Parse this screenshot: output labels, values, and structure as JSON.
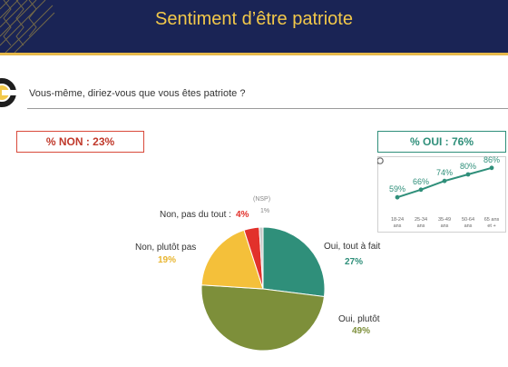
{
  "header": {
    "title": "Sentiment d’être patriote"
  },
  "question": "Vous-même, diriez-vous que vous êtes patriote ?",
  "summary": {
    "non": "% NON : 23%",
    "oui": "% OUI : 76%"
  },
  "colors": {
    "header_bg": "#1a2455",
    "title": "#f2c84a",
    "oui_tout_a_fait": "#2f8f7a",
    "oui_plutot": "#7d8f3a",
    "non_plutot_pas": "#f4c03a",
    "non_pas_du_tout": "#e2312b",
    "nsp": "#c9c9c9"
  },
  "chart_data": [
    {
      "type": "pie",
      "slices": [
        {
          "label": "Oui, tout à fait",
          "value": 27,
          "value_label": "27%"
        },
        {
          "label": "Oui, plutôt",
          "value": 49,
          "value_label": "49%"
        },
        {
          "label": "Non, plutôt pas",
          "value": 19,
          "value_label": "19%"
        },
        {
          "label": "Non, pas du tout :",
          "value": 4,
          "value_label": "4%"
        },
        {
          "label": "(NSP)",
          "value": 1,
          "value_label": "1%"
        }
      ]
    },
    {
      "type": "line",
      "categories": [
        "18-24 ans",
        "25-34 ans",
        "35-49 ans",
        "50-64 ans",
        "65 ans et +"
      ],
      "tick_labels": [
        [
          "18-24",
          "ans"
        ],
        [
          "25-34",
          "ans"
        ],
        [
          "35-49",
          "ans"
        ],
        [
          "50-64",
          "ans"
        ],
        [
          "65 ans",
          "et +"
        ]
      ],
      "values": [
        59,
        66,
        74,
        80,
        86
      ],
      "value_labels": [
        "59%",
        "66%",
        "74%",
        "80%",
        "86%"
      ],
      "ylim": [
        50,
        90
      ]
    }
  ]
}
